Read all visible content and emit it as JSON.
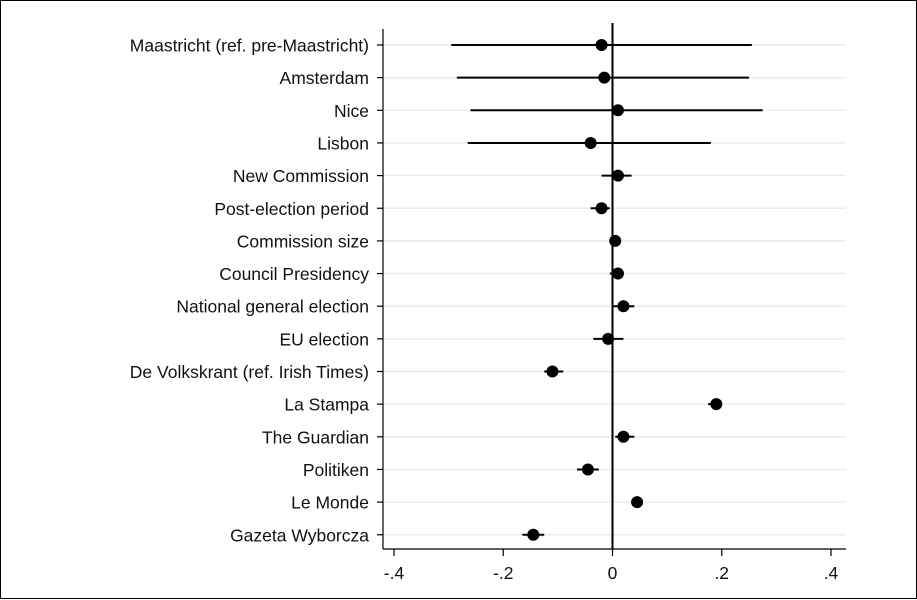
{
  "chart_data": {
    "type": "scatter",
    "subtype": "coefficient-plot",
    "title": "",
    "xlabel": "",
    "ylabel": "",
    "xlim": [
      -0.4,
      0.4
    ],
    "x_ticks": [
      -0.4,
      -0.2,
      0,
      0.2,
      0.4
    ],
    "x_tick_labels": [
      "-.4",
      "-.2",
      "0",
      ".2",
      ".4"
    ],
    "reference_line": 0,
    "grid": "horizontal",
    "legend": "none",
    "colors": {
      "marker": "#000000",
      "ci_line": "#000000",
      "reference_line": "#000000",
      "grid": "#e6ecf0",
      "frame": "#000000"
    },
    "categories": [
      "Maastricht (ref. pre-Maastricht)",
      "Amsterdam",
      "Nice",
      "Lisbon",
      "New Commission",
      "Post-election period",
      "Commission size",
      "Council Presidency",
      "National general election",
      "EU election",
      "De Volkskrant (ref. Irish Times)",
      "La Stampa",
      "The Guardian",
      "Politiken",
      "Le Monde",
      "Gazeta Wyborcza"
    ],
    "estimates": [
      -0.02,
      -0.015,
      0.01,
      -0.04,
      0.01,
      -0.02,
      0.005,
      0.01,
      0.02,
      -0.008,
      -0.11,
      0.19,
      0.02,
      -0.045,
      0.045,
      -0.145
    ],
    "ci_low": [
      -0.295,
      -0.285,
      -0.26,
      -0.265,
      -0.02,
      -0.04,
      -0.005,
      -0.005,
      0.0,
      -0.035,
      -0.125,
      0.175,
      0.005,
      -0.065,
      0.035,
      -0.165
    ],
    "ci_high": [
      0.255,
      0.25,
      0.275,
      0.18,
      0.035,
      -0.005,
      0.01,
      0.02,
      0.04,
      0.02,
      -0.09,
      0.2,
      0.04,
      -0.025,
      0.055,
      -0.125
    ]
  }
}
